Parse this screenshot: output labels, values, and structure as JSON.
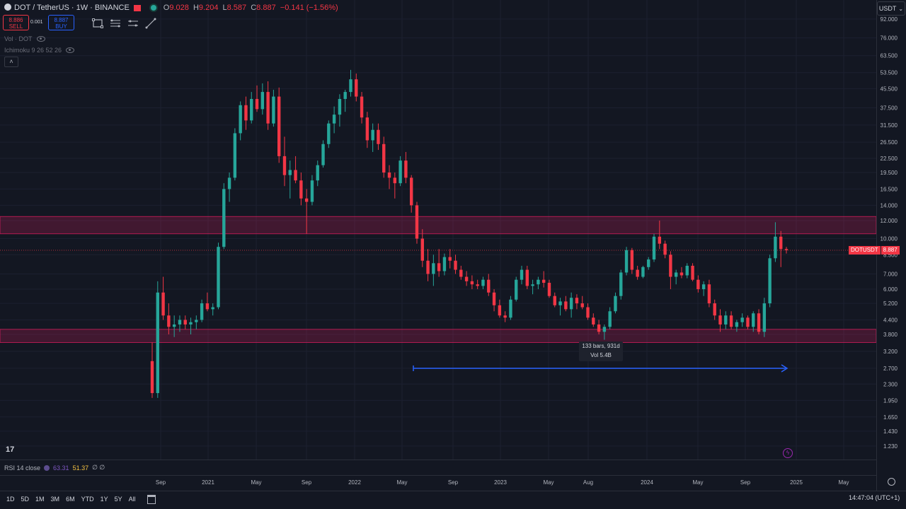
{
  "header": {
    "symbol": "DOT / TetherUS · 1W · BINANCE",
    "ohlc": [
      {
        "k": "O",
        "v": "9.028"
      },
      {
        "k": "H",
        "v": "9.204"
      },
      {
        "k": "L",
        "v": "8.587"
      },
      {
        "k": "C",
        "v": "8.887"
      }
    ],
    "change": "−0.141 (−1.56%)"
  },
  "trade": {
    "sell_price": "8.886",
    "sell_label": "SELL",
    "spread": "0.001",
    "buy_price": "8.887",
    "buy_label": "BUY"
  },
  "indicators": {
    "vol": "Vol · DOT",
    "ichimoku": "Ichimoku 9 26 52 26"
  },
  "currency": "USDT",
  "last_price": {
    "symbol": "DOTUSDT",
    "value": "8.887"
  },
  "measure_tooltip": {
    "line1": "133 bars, 931d",
    "line2": "Vol 5.4B"
  },
  "rsi": {
    "label": "RSI 14 close",
    "v1": "63.31",
    "v2": "51.37",
    "v3": "∅ ∅"
  },
  "ranges": [
    "1D",
    "5D",
    "1M",
    "3M",
    "6M",
    "YTD",
    "1Y",
    "5Y",
    "All"
  ],
  "clock": "14:47:04 (UTC+1)",
  "colors": {
    "up": "#26a69a",
    "down": "#f23645",
    "zone": "#e91e63",
    "measure": "#2962ff",
    "background": "#131722"
  },
  "chart_data": {
    "type": "candlestick",
    "scale": "log",
    "ylim": [
      1.1,
      100
    ],
    "y_ticks": [
      "92.000",
      "76.000",
      "63.500",
      "53.500",
      "45.500",
      "37.500",
      "31.500",
      "26.500",
      "22.500",
      "19.500",
      "16.500",
      "14.000",
      "12.000",
      "10.000",
      "8.500",
      "7.000",
      "6.000",
      "5.200",
      "4.400",
      "3.800",
      "3.200",
      "2.700",
      "2.300",
      "1.950",
      "1.650",
      "1.430",
      "1.230"
    ],
    "x_labels": [
      "Sep",
      "2021",
      "May",
      "Sep",
      "2022",
      "May",
      "Sep",
      "2023",
      "May",
      "Aug",
      "2024",
      "May",
      "Sep",
      "2025",
      "May"
    ],
    "zones": [
      {
        "name": "resistance",
        "low": 10.5,
        "high": 12.5
      },
      {
        "name": "support",
        "low": 3.5,
        "high": 4.0
      }
    ],
    "measure": {
      "from": "2022-05",
      "to": "2024-12",
      "bars": 133,
      "days": 931
    },
    "candles": [
      [
        2.9,
        3.5,
        2.0,
        2.1
      ],
      [
        2.1,
        6.5,
        2.0,
        5.8
      ],
      [
        5.8,
        6.8,
        4.4,
        4.6
      ],
      [
        4.6,
        5.2,
        3.8,
        4.1
      ],
      [
        4.1,
        4.6,
        3.7,
        4.2
      ],
      [
        4.2,
        4.6,
        3.9,
        4.4
      ],
      [
        4.4,
        4.6,
        4.0,
        4.2
      ],
      [
        4.2,
        4.5,
        3.8,
        4.3
      ],
      [
        4.3,
        4.6,
        4.0,
        4.4
      ],
      [
        4.4,
        5.4,
        4.3,
        5.2
      ],
      [
        5.2,
        5.8,
        4.8,
        4.9
      ],
      [
        4.9,
        5.2,
        4.6,
        5.0
      ],
      [
        5.0,
        9.6,
        4.9,
        9.2
      ],
      [
        9.2,
        17.5,
        9.0,
        16.5
      ],
      [
        16.5,
        19.5,
        14.5,
        18.5
      ],
      [
        18.5,
        30.5,
        18.0,
        29.0
      ],
      [
        29.0,
        40.0,
        27.0,
        38.5
      ],
      [
        38.5,
        42.0,
        30.0,
        33.0
      ],
      [
        33.0,
        44.0,
        32.0,
        41.0
      ],
      [
        41.0,
        47.0,
        36.0,
        37.0
      ],
      [
        37.0,
        48.0,
        35.0,
        44.0
      ],
      [
        44.0,
        49.0,
        30.0,
        32.0
      ],
      [
        32.0,
        45.0,
        31.0,
        42.0
      ],
      [
        42.0,
        46.0,
        21.5,
        23.0
      ],
      [
        23.0,
        28.0,
        17.0,
        19.0
      ],
      [
        19.0,
        22.0,
        15.0,
        20.0
      ],
      [
        20.0,
        23.0,
        17.5,
        18.0
      ],
      [
        18.0,
        19.5,
        14.0,
        15.0
      ],
      [
        15.0,
        16.5,
        10.5,
        14.5
      ],
      [
        14.5,
        19.0,
        14.0,
        18.0
      ],
      [
        18.0,
        22.0,
        17.0,
        21.0
      ],
      [
        21.0,
        27.0,
        20.5,
        26.0
      ],
      [
        26.0,
        33.0,
        25.0,
        32.0
      ],
      [
        32.0,
        38.0,
        29.0,
        35.0
      ],
      [
        35.0,
        43.0,
        31.0,
        41.0
      ],
      [
        41.0,
        45.0,
        36.0,
        44.0
      ],
      [
        44.0,
        55.0,
        42.0,
        50.0
      ],
      [
        50.0,
        53.0,
        40.0,
        42.0
      ],
      [
        42.0,
        44.0,
        32.0,
        34.0
      ],
      [
        34.0,
        36.0,
        25.0,
        27.0
      ],
      [
        27.0,
        32.0,
        24.0,
        30.0
      ],
      [
        30.0,
        32.0,
        24.5,
        26.0
      ],
      [
        26.0,
        28.0,
        18.5,
        19.5
      ],
      [
        19.5,
        21.0,
        16.5,
        18.5
      ],
      [
        18.5,
        19.5,
        15.0,
        17.5
      ],
      [
        17.5,
        23.0,
        17.0,
        22.0
      ],
      [
        22.0,
        24.0,
        17.5,
        18.5
      ],
      [
        18.5,
        19.0,
        13.0,
        14.0
      ],
      [
        14.0,
        14.5,
        9.5,
        10.0
      ],
      [
        10.0,
        11.0,
        7.5,
        8.0
      ],
      [
        8.0,
        9.0,
        6.5,
        7.0
      ],
      [
        7.0,
        8.5,
        6.2,
        7.8
      ],
      [
        7.8,
        9.0,
        6.8,
        7.2
      ],
      [
        7.2,
        8.6,
        6.9,
        8.3
      ],
      [
        8.3,
        9.0,
        7.4,
        8.0
      ],
      [
        8.0,
        8.5,
        7.0,
        7.3
      ],
      [
        7.3,
        7.6,
        6.6,
        6.8
      ],
      [
        6.8,
        7.2,
        6.2,
        6.5
      ],
      [
        6.5,
        6.9,
        6.0,
        6.3
      ],
      [
        6.3,
        6.6,
        6.0,
        6.2
      ],
      [
        6.2,
        6.8,
        6.0,
        6.6
      ],
      [
        6.6,
        7.0,
        5.6,
        5.8
      ],
      [
        5.8,
        6.0,
        4.8,
        5.1
      ],
      [
        5.1,
        5.4,
        4.5,
        4.6
      ],
      [
        4.6,
        4.8,
        4.3,
        4.5
      ],
      [
        4.5,
        5.6,
        4.4,
        5.4
      ],
      [
        5.4,
        6.8,
        5.3,
        6.6
      ],
      [
        6.6,
        7.6,
        6.3,
        7.3
      ],
      [
        7.3,
        7.6,
        6.0,
        6.2
      ],
      [
        6.2,
        6.6,
        5.7,
        6.3
      ],
      [
        6.3,
        6.8,
        6.0,
        6.6
      ],
      [
        6.6,
        7.2,
        6.1,
        6.4
      ],
      [
        6.4,
        6.6,
        5.5,
        5.6
      ],
      [
        5.6,
        5.8,
        5.0,
        5.1
      ],
      [
        5.1,
        5.5,
        4.6,
        5.3
      ],
      [
        5.3,
        5.6,
        4.8,
        4.9
      ],
      [
        4.9,
        5.8,
        4.5,
        5.5
      ],
      [
        5.5,
        5.7,
        4.9,
        5.2
      ],
      [
        5.2,
        5.6,
        4.9,
        5.0
      ],
      [
        5.0,
        5.2,
        4.4,
        4.5
      ],
      [
        4.5,
        4.7,
        4.1,
        4.2
      ],
      [
        4.2,
        4.4,
        3.8,
        3.9
      ],
      [
        3.9,
        4.2,
        3.6,
        4.1
      ],
      [
        4.1,
        5.0,
        4.0,
        4.8
      ],
      [
        4.8,
        5.8,
        4.7,
        5.6
      ],
      [
        5.6,
        7.3,
        5.4,
        7.1
      ],
      [
        7.1,
        9.2,
        6.9,
        8.9
      ],
      [
        8.9,
        9.1,
        7.0,
        7.3
      ],
      [
        7.3,
        7.6,
        6.6,
        6.8
      ],
      [
        6.8,
        7.6,
        6.7,
        7.5
      ],
      [
        7.5,
        8.3,
        7.3,
        8.1
      ],
      [
        8.1,
        10.5,
        7.9,
        10.2
      ],
      [
        10.2,
        12.0,
        9.0,
        9.5
      ],
      [
        9.5,
        9.8,
        8.2,
        8.5
      ],
      [
        8.5,
        8.8,
        6.0,
        6.8
      ],
      [
        6.8,
        7.3,
        6.3,
        7.1
      ],
      [
        7.1,
        7.5,
        6.7,
        6.9
      ],
      [
        6.9,
        7.8,
        6.7,
        7.6
      ],
      [
        7.6,
        7.8,
        6.5,
        6.6
      ],
      [
        6.6,
        6.9,
        5.8,
        6.0
      ],
      [
        6.0,
        6.5,
        5.6,
        6.3
      ],
      [
        6.3,
        6.6,
        5.0,
        5.2
      ],
      [
        5.2,
        5.4,
        4.4,
        4.6
      ],
      [
        4.6,
        4.9,
        3.9,
        4.2
      ],
      [
        4.2,
        4.8,
        4.0,
        4.6
      ],
      [
        4.6,
        4.8,
        4.0,
        4.1
      ],
      [
        4.1,
        4.4,
        3.9,
        4.3
      ],
      [
        4.3,
        4.7,
        4.1,
        4.5
      ],
      [
        4.5,
        4.6,
        4.0,
        4.1
      ],
      [
        4.1,
        4.8,
        3.9,
        4.7
      ],
      [
        4.7,
        4.9,
        3.8,
        3.9
      ],
      [
        3.9,
        5.5,
        3.7,
        5.2
      ],
      [
        5.2,
        8.5,
        5.0,
        8.2
      ],
      [
        8.2,
        11.8,
        7.9,
        10.2
      ],
      [
        10.2,
        10.8,
        7.5,
        9.0
      ],
      [
        9.0,
        9.2,
        8.6,
        8.9
      ]
    ]
  }
}
